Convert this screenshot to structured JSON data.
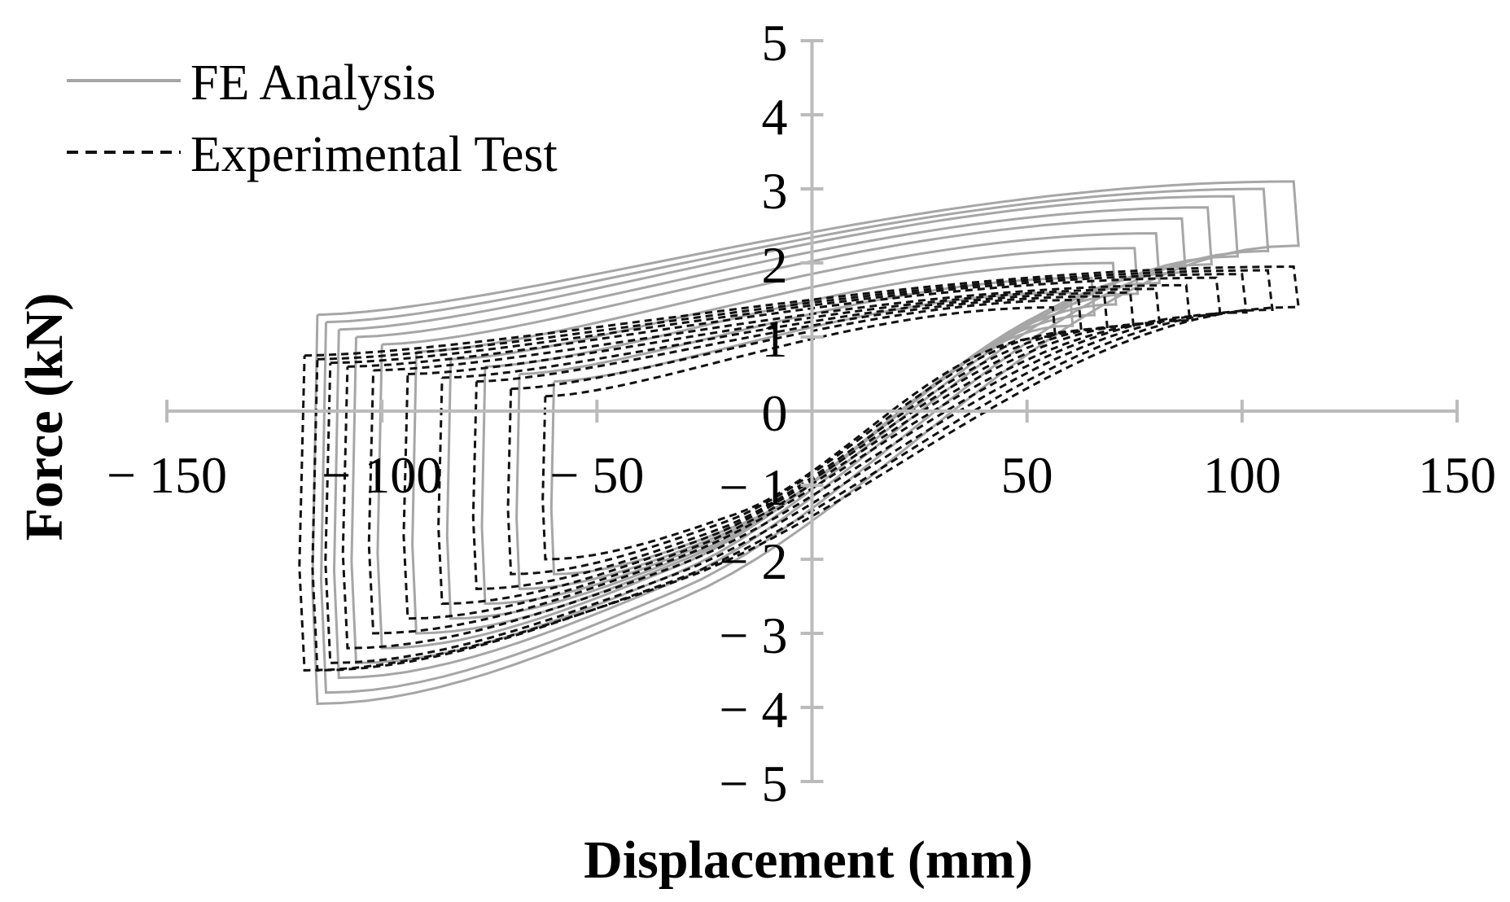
{
  "chart_data": {
    "type": "line",
    "title": "",
    "xlabel": "Displacement (mm)",
    "ylabel": "Force (kN)",
    "xlim": [
      -150,
      150
    ],
    "ylim": [
      -5,
      5
    ],
    "x_ticks": [
      -150,
      -100,
      -50,
      50,
      100,
      150
    ],
    "x_tick_labels": [
      "− 150",
      "− 100",
      "− 50",
      "50",
      "100",
      "150"
    ],
    "y_ticks": [
      5,
      4,
      3,
      2,
      1,
      0,
      -1,
      -2,
      -3,
      -4,
      -5
    ],
    "y_tick_labels": [
      "5",
      "4",
      "3",
      "2",
      "1",
      "0",
      "− 1",
      "− 2",
      "− 3",
      "− 4",
      "− 5"
    ],
    "grid": false,
    "legend_position": "top-left",
    "colors": {
      "axis": "#bbbbbb",
      "fe": "#a6a6a6",
      "exp": "#111111"
    },
    "series": [
      {
        "name": "FE Analysis",
        "style": "solid",
        "loops": [
          {
            "amp_pos": 60,
            "amp_neg": -60,
            "fmax": 1.6,
            "fmin": -2.2,
            "fres_pos": -1.9,
            "fres_neg": 0.4
          },
          {
            "amp_pos": 65,
            "amp_neg": -68,
            "fmax": 1.8,
            "fmin": -2.4,
            "fres_pos": -1.9,
            "fres_neg": 0.5
          },
          {
            "amp_pos": 70,
            "amp_neg": -76,
            "fmax": 2.0,
            "fmin": -2.6,
            "fres_pos": -1.9,
            "fres_neg": 0.6
          },
          {
            "amp_pos": 75,
            "amp_neg": -84,
            "fmax": 2.2,
            "fmin": -2.8,
            "fres_pos": -2.0,
            "fres_neg": 0.7
          },
          {
            "amp_pos": 80,
            "amp_neg": -92,
            "fmax": 2.4,
            "fmin": -3.0,
            "fres_pos": -2.0,
            "fres_neg": 0.8
          },
          {
            "amp_pos": 86,
            "amp_neg": -100,
            "fmax": 2.6,
            "fmin": -3.2,
            "fres_pos": -2.0,
            "fres_neg": 0.9
          },
          {
            "amp_pos": 92,
            "amp_neg": -106,
            "fmax": 2.75,
            "fmin": -3.4,
            "fres_pos": -2.1,
            "fres_neg": 1.0
          },
          {
            "amp_pos": 98,
            "amp_neg": -110,
            "fmax": 2.9,
            "fmin": -3.6,
            "fres_pos": -2.1,
            "fres_neg": 1.1
          },
          {
            "amp_pos": 105,
            "amp_neg": -113,
            "fmax": 3.0,
            "fmin": -3.8,
            "fres_pos": -2.1,
            "fres_neg": 1.2
          },
          {
            "amp_pos": 112,
            "amp_neg": -115,
            "fmax": 3.1,
            "fmin": -3.95,
            "fres_pos": -2.2,
            "fres_neg": 1.3
          }
        ]
      },
      {
        "name": "Experimental Test",
        "style": "dashed",
        "loops": [
          {
            "amp_pos": 56,
            "amp_neg": -62,
            "fmax": 1.4,
            "fmin": -2.0,
            "fres_pos": -2.0,
            "fres_neg": 0.2
          },
          {
            "amp_pos": 62,
            "amp_neg": -70,
            "fmax": 1.5,
            "fmin": -2.2,
            "fres_pos": -2.0,
            "fres_neg": 0.3
          },
          {
            "amp_pos": 68,
            "amp_neg": -78,
            "fmax": 1.55,
            "fmin": -2.4,
            "fres_pos": -2.1,
            "fres_neg": 0.4
          },
          {
            "amp_pos": 74,
            "amp_neg": -86,
            "fmax": 1.6,
            "fmin": -2.6,
            "fres_pos": -2.1,
            "fres_neg": 0.45
          },
          {
            "amp_pos": 80,
            "amp_neg": -94,
            "fmax": 1.65,
            "fmin": -2.8,
            "fres_pos": -2.2,
            "fres_neg": 0.5
          },
          {
            "amp_pos": 87,
            "amp_neg": -102,
            "fmax": 1.7,
            "fmin": -3.0,
            "fres_pos": -2.2,
            "fres_neg": 0.55
          },
          {
            "amp_pos": 94,
            "amp_neg": -108,
            "fmax": 1.8,
            "fmin": -3.2,
            "fres_pos": -2.3,
            "fres_neg": 0.6
          },
          {
            "amp_pos": 100,
            "amp_neg": -112,
            "fmax": 1.85,
            "fmin": -3.4,
            "fres_pos": -2.3,
            "fres_neg": 0.65
          },
          {
            "amp_pos": 106,
            "amp_neg": -115,
            "fmax": 1.9,
            "fmin": -3.5,
            "fres_pos": -2.4,
            "fres_neg": 0.7
          },
          {
            "amp_pos": 112,
            "amp_neg": -118,
            "fmax": 1.95,
            "fmin": -3.5,
            "fres_pos": -2.5,
            "fres_neg": 0.75
          }
        ]
      }
    ]
  }
}
